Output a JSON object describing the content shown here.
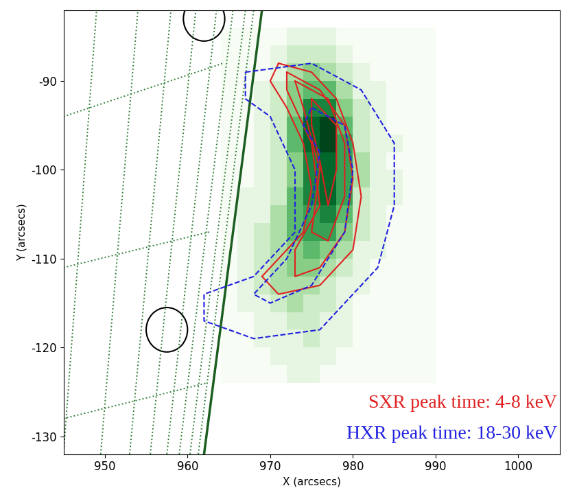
{
  "chart_data": {
    "type": "image",
    "x_label": "X (arcsecs)",
    "y_label": "Y (arcsecs)",
    "xlim": [
      945,
      1005
    ],
    "xticks": [
      950,
      960,
      970,
      980,
      990,
      1000
    ],
    "ylim": [
      -132,
      -82
    ],
    "yticks": [
      -130,
      -120,
      -110,
      -100,
      -90
    ],
    "image": {
      "x_edges": [
        964,
        966,
        968,
        970,
        972,
        974,
        976,
        978,
        980,
        982,
        984,
        986,
        988,
        990
      ],
      "y_edges": [
        -124,
        -122,
        -120,
        -118,
        -116,
        -114,
        -112,
        -110,
        -108,
        -106,
        -104,
        -102,
        -100,
        -98,
        -96,
        -94,
        -92,
        -90,
        -88,
        -86,
        -84
      ],
      "cell_range": [
        0,
        9
      ],
      "cells": [
        [
          0,
          0,
          0,
          0,
          1,
          1,
          0,
          0,
          0,
          0,
          0,
          0,
          0
        ],
        [
          0,
          0,
          0,
          1,
          1,
          1,
          1,
          0,
          0,
          0,
          0,
          0,
          0
        ],
        [
          0,
          0,
          1,
          1,
          1,
          2,
          1,
          1,
          0,
          0,
          0,
          0,
          0
        ],
        [
          0,
          0,
          1,
          1,
          2,
          2,
          1,
          1,
          0,
          0,
          0,
          0,
          0
        ],
        [
          0,
          1,
          1,
          2,
          3,
          2,
          2,
          1,
          0,
          0,
          0,
          0,
          0
        ],
        [
          0,
          1,
          2,
          3,
          3,
          3,
          2,
          1,
          1,
          0,
          0,
          0,
          0
        ],
        [
          0,
          1,
          2,
          3,
          4,
          4,
          3,
          2,
          1,
          0,
          0,
          0,
          0
        ],
        [
          0,
          1,
          2,
          3,
          4,
          5,
          4,
          3,
          1,
          1,
          0,
          0,
          0
        ],
        [
          0,
          1,
          2,
          3,
          5,
          6,
          6,
          4,
          2,
          1,
          0,
          0,
          0
        ],
        [
          0,
          1,
          1,
          3,
          5,
          6,
          7,
          5,
          2,
          1,
          0,
          0,
          0
        ],
        [
          0,
          1,
          1,
          2,
          5,
          7,
          8,
          6,
          2,
          1,
          1,
          0,
          0
        ],
        [
          0,
          0,
          1,
          2,
          4,
          7,
          8,
          6,
          3,
          1,
          1,
          0,
          0
        ],
        [
          0,
          0,
          1,
          2,
          4,
          7,
          8,
          6,
          3,
          1,
          0,
          0,
          0
        ],
        [
          0,
          0,
          1,
          2,
          5,
          8,
          9,
          6,
          2,
          1,
          1,
          0,
          0
        ],
        [
          0,
          0,
          1,
          2,
          5,
          8,
          9,
          5,
          2,
          1,
          0,
          0,
          0
        ],
        [
          0,
          0,
          1,
          2,
          4,
          7,
          7,
          4,
          2,
          1,
          0,
          0,
          0
        ],
        [
          0,
          0,
          1,
          2,
          4,
          5,
          5,
          3,
          1,
          1,
          0,
          0,
          0
        ],
        [
          0,
          0,
          0,
          1,
          3,
          4,
          3,
          2,
          1,
          0,
          0,
          0,
          0
        ],
        [
          0,
          0,
          0,
          1,
          2,
          2,
          2,
          1,
          0,
          0,
          0,
          0,
          0
        ],
        [
          0,
          0,
          0,
          0,
          1,
          1,
          1,
          0,
          0,
          0,
          0,
          0,
          0
        ]
      ]
    },
    "series": [
      {
        "name": "SXR peak time: 4-8 keV",
        "color": "#e02020",
        "line_style": "solid",
        "paths": [
          [
            [
              971,
              -88
            ],
            [
              975,
              -89
            ],
            [
              978,
              -92
            ],
            [
              980,
              -97
            ],
            [
              981,
              -103
            ],
            [
              980,
              -109
            ],
            [
              976,
              -113
            ],
            [
              971,
              -114
            ],
            [
              969,
              -112
            ],
            [
              971,
              -110
            ],
            [
              974,
              -107
            ],
            [
              975,
              -102
            ],
            [
              974,
              -97
            ],
            [
              972,
              -93
            ],
            [
              970,
              -90
            ]
          ],
          [
            [
              972,
              -89
            ],
            [
              976,
              -91
            ],
            [
              979,
              -95
            ],
            [
              980,
              -101
            ],
            [
              979,
              -107
            ],
            [
              976,
              -111
            ],
            [
              973,
              -112
            ],
            [
              973,
              -109
            ],
            [
              976,
              -104
            ],
            [
              975,
              -97
            ],
            [
              972,
              -91
            ]
          ],
          [
            [
              973,
              -90
            ],
            [
              977,
              -92
            ],
            [
              979,
              -97
            ],
            [
              979,
              -103
            ],
            [
              977,
              -108
            ],
            [
              975,
              -107
            ],
            [
              976,
              -100
            ],
            [
              974,
              -93
            ]
          ],
          [
            [
              975,
              -92
            ],
            [
              978,
              -95
            ],
            [
              978,
              -100
            ],
            [
              977,
              -104
            ],
            [
              976,
              -99
            ],
            [
              975,
              -95
            ]
          ]
        ]
      },
      {
        "name": "HXR peak time: 18-30 keV",
        "color": "#2020e0",
        "line_style": "dashed",
        "paths": [
          [
            [
              967,
              -89
            ],
            [
              975,
              -88
            ],
            [
              981,
              -91
            ],
            [
              985,
              -97
            ],
            [
              985,
              -104
            ],
            [
              983,
              -111
            ],
            [
              976,
              -118
            ],
            [
              968,
              -119
            ],
            [
              962,
              -117
            ],
            [
              962,
              -114
            ],
            [
              968,
              -112
            ],
            [
              973,
              -107
            ],
            [
              973,
              -100
            ],
            [
              970,
              -94
            ],
            [
              967,
              -92
            ]
          ],
          [
            [
              975,
              -93
            ],
            [
              979,
              -95
            ],
            [
              980,
              -100
            ],
            [
              979,
              -107
            ],
            [
              975,
              -113
            ],
            [
              970,
              -115
            ],
            [
              968,
              -114
            ],
            [
              972,
              -110
            ],
            [
              975,
              -104
            ],
            [
              976,
              -98
            ],
            [
              974,
              -95
            ]
          ]
        ]
      }
    ],
    "limb": [
      [
        962,
        -132
      ],
      [
        969,
        -82
      ]
    ],
    "meridians": [
      [
        [
          945,
          -132
        ],
        [
          949,
          -82
        ]
      ],
      [
        [
          949.5,
          -132
        ],
        [
          954,
          -82
        ]
      ],
      [
        [
          953,
          -132
        ],
        [
          958,
          -82
        ]
      ],
      [
        [
          955.5,
          -132
        ],
        [
          961,
          -82
        ]
      ],
      [
        [
          957.5,
          -132
        ],
        [
          963.5,
          -82
        ]
      ],
      [
        [
          959,
          -132
        ],
        [
          965.5,
          -82
        ]
      ],
      [
        [
          960.3,
          -132
        ],
        [
          967,
          -82
        ]
      ],
      [
        [
          961.3,
          -132
        ],
        [
          968,
          -82
        ]
      ]
    ],
    "parallels": [
      [
        [
          945,
          -94
        ],
        [
          964.3,
          -88
        ]
      ],
      [
        [
          945,
          -111
        ],
        [
          962.6,
          -107
        ]
      ],
      [
        [
          945,
          -128
        ],
        [
          962.3,
          -124
        ]
      ]
    ],
    "circles": [
      {
        "x": 962,
        "y": -83,
        "r": 2.5
      },
      {
        "x": 957.5,
        "y": -118,
        "r": 2.5
      }
    ]
  }
}
